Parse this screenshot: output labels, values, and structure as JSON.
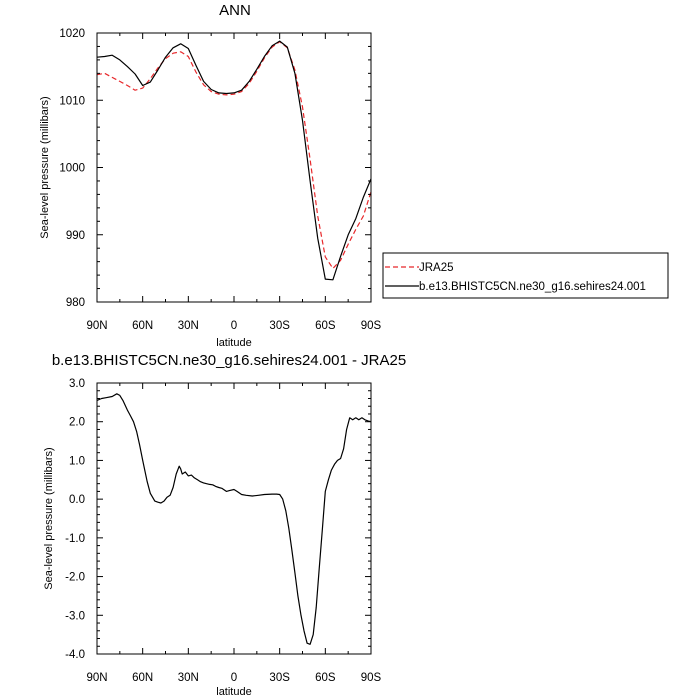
{
  "chart_data": [
    {
      "type": "line",
      "title": "ANN",
      "xlabel": "latitude",
      "ylabel": "Sea-level pressure (millibars)",
      "xlim": [
        90,
        -90
      ],
      "ylim": [
        980,
        1020
      ],
      "x_ticks": [
        90,
        60,
        30,
        0,
        -30,
        -60,
        -90
      ],
      "x_tick_labels": [
        "90N",
        "60N",
        "30N",
        "0",
        "30S",
        "60S",
        "90S"
      ],
      "y_ticks": [
        980,
        990,
        1000,
        1010,
        1020
      ],
      "y_tick_labels": [
        "980",
        "990",
        "1000",
        "1010",
        "1020"
      ],
      "grid": false,
      "legend_position": "right",
      "series": [
        {
          "name": "JRA25",
          "color": "#e8282b",
          "dash": "dashed",
          "x": [
            90,
            85,
            80,
            75,
            70,
            65,
            60,
            55,
            50,
            45,
            40,
            35,
            30,
            25,
            20,
            15,
            10,
            5,
            0,
            -5,
            -10,
            -15,
            -20,
            -25,
            -30,
            -35,
            -40,
            -45,
            -50,
            -55,
            -60,
            -65,
            -70,
            -75,
            -80,
            -85,
            -90
          ],
          "values": [
            1013.8,
            1014.0,
            1013.4,
            1012.8,
            1012.2,
            1011.5,
            1011.8,
            1013.2,
            1014.8,
            1016.2,
            1017.0,
            1017.2,
            1016.5,
            1014.2,
            1012.3,
            1011.3,
            1010.9,
            1010.8,
            1010.9,
            1011.3,
            1012.5,
            1014.3,
            1016.3,
            1017.9,
            1018.7,
            1017.8,
            1014.5,
            1009.0,
            1001.2,
            992.8,
            986.7,
            985.0,
            986.2,
            988.6,
            990.8,
            992.8,
            996.4
          ]
        },
        {
          "name": "b.e13.BHISTC5CN.ne30_g16.sehires24.001",
          "color": "#000000",
          "dash": "solid",
          "x": [
            90,
            85,
            80,
            75,
            70,
            65,
            60,
            55,
            50,
            45,
            40,
            35,
            30,
            25,
            20,
            15,
            10,
            5,
            0,
            -5,
            -10,
            -15,
            -20,
            -25,
            -30,
            -35,
            -40,
            -45,
            -50,
            -55,
            -60,
            -65,
            -70,
            -75,
            -80,
            -85,
            -90
          ],
          "values": [
            1016.4,
            1016.5,
            1016.7,
            1016.0,
            1015.0,
            1013.9,
            1012.2,
            1012.7,
            1014.5,
            1016.4,
            1017.8,
            1018.4,
            1017.7,
            1015.2,
            1012.8,
            1011.6,
            1011.1,
            1011.0,
            1011.1,
            1011.5,
            1012.8,
            1014.6,
            1016.5,
            1018.1,
            1018.8,
            1017.9,
            1014.0,
            1007.0,
            998.0,
            989.5,
            983.4,
            983.3,
            986.8,
            990.0,
            992.4,
            995.6,
            998.3
          ]
        }
      ]
    },
    {
      "type": "line",
      "title": "b.e13.BHISTC5CN.ne30_g16.sehires24.001 - JRA25",
      "xlabel": "latitude",
      "ylabel": "Sea-level pressure (millibars)",
      "xlim": [
        90,
        -90
      ],
      "ylim": [
        -4.0,
        3.0
      ],
      "x_ticks": [
        90,
        60,
        30,
        0,
        -30,
        -60,
        -90
      ],
      "x_tick_labels": [
        "90N",
        "60N",
        "30N",
        "0",
        "30S",
        "60S",
        "90S"
      ],
      "y_ticks": [
        -4.0,
        -3.0,
        -2.0,
        -1.0,
        0.0,
        1.0,
        2.0,
        3.0
      ],
      "y_tick_labels": [
        "-4.0",
        "-3.0",
        "-2.0",
        "-1.0",
        "0.0",
        "1.0",
        "2.0",
        "3.0"
      ],
      "grid": false,
      "series": [
        {
          "color": "#000000",
          "dash": "solid",
          "x": [
            90,
            87,
            84,
            80,
            77,
            75,
            73,
            70,
            68,
            66,
            64,
            62,
            60,
            57,
            55,
            52,
            50,
            48,
            46,
            44,
            42,
            40,
            38,
            36,
            35,
            34,
            32,
            30,
            28,
            26,
            24,
            22,
            20,
            18,
            16,
            14,
            12,
            10,
            8,
            5,
            3,
            0,
            -2,
            -5,
            -8,
            -12,
            -16,
            -20,
            -25,
            -28,
            -30,
            -32,
            -34,
            -36,
            -38,
            -40,
            -42,
            -44,
            -46,
            -48,
            -50,
            -52,
            -54,
            -56,
            -58,
            -60,
            -62,
            -64,
            -66,
            -68,
            -70,
            -72,
            -74,
            -76,
            -78,
            -80,
            -82,
            -84,
            -86,
            -88,
            -90
          ],
          "values": [
            2.55,
            2.6,
            2.62,
            2.65,
            2.72,
            2.68,
            2.55,
            2.3,
            2.15,
            2.0,
            1.75,
            1.4,
            1.0,
            0.45,
            0.15,
            -0.05,
            -0.08,
            -0.1,
            -0.05,
            0.05,
            0.1,
            0.3,
            0.65,
            0.85,
            0.78,
            0.65,
            0.7,
            0.6,
            0.62,
            0.55,
            0.5,
            0.45,
            0.42,
            0.4,
            0.38,
            0.37,
            0.33,
            0.3,
            0.28,
            0.2,
            0.22,
            0.25,
            0.2,
            0.12,
            0.1,
            0.08,
            0.1,
            0.12,
            0.13,
            0.13,
            0.12,
            0.0,
            -0.3,
            -0.75,
            -1.3,
            -1.9,
            -2.5,
            -3.0,
            -3.4,
            -3.72,
            -3.75,
            -3.5,
            -2.8,
            -1.8,
            -0.8,
            0.2,
            0.5,
            0.75,
            0.9,
            1.0,
            1.05,
            1.3,
            1.8,
            2.1,
            2.05,
            2.1,
            2.05,
            2.1,
            2.05,
            2.02,
            2.0
          ]
        }
      ]
    }
  ]
}
